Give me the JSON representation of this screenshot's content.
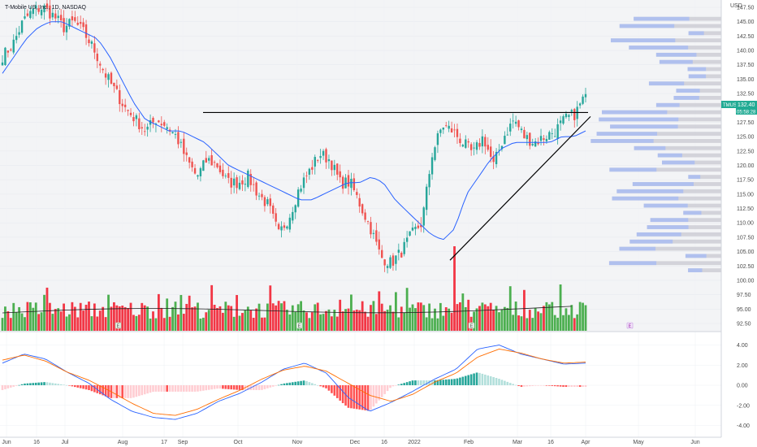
{
  "header": {
    "title": "T-Mobile US, Inc., 1D, NASDAQ",
    "currency": "USD"
  },
  "price_tag": {
    "symbol": "TMUS",
    "price": "132.40",
    "countdown": "05:58:28"
  },
  "event_markers": [
    "E",
    "E",
    "E"
  ],
  "dividend_marker": "E",
  "colors": {
    "up": "#26a69a",
    "down": "#ef5350",
    "vol_up": "#4caf50",
    "vol_down": "#f23645",
    "ma": "#2962ff",
    "macd": "#2962ff",
    "signal": "#ff6d00",
    "vp_up": "#a7bbf2",
    "vp_down": "#c8c8d0"
  },
  "chart_data": [
    {
      "type": "candlestick",
      "title": "T-Mobile US, Inc., 1D, NASDAQ",
      "ylim": [
        92.5,
        147.5
      ],
      "y_ticks": [
        "147.50",
        "145.00",
        "142.50",
        "140.00",
        "137.50",
        "135.00",
        "132.50",
        "130.00",
        "127.50",
        "125.00",
        "122.50",
        "120.00",
        "117.50",
        "115.00",
        "112.50",
        "110.00",
        "107.50",
        "105.00",
        "102.50",
        "100.00",
        "97.50",
        "95.00",
        "92.50"
      ],
      "x_ticks": [
        "Jun",
        "16",
        "Jul",
        "Aug",
        "17",
        "Sep",
        "Oct",
        "Nov",
        "Dec",
        "16",
        "2022",
        "Feb",
        "Mar",
        "16",
        "Apr",
        "May",
        "Jun"
      ],
      "series": [
        {
          "name": "close_path_waypoints",
          "values": [
            139,
            141,
            145,
            147,
            147.5,
            146,
            144,
            145,
            143,
            140,
            136,
            133,
            130,
            128,
            126,
            128,
            127,
            125,
            121,
            118,
            121,
            120,
            117,
            117,
            118,
            115,
            113,
            108,
            111,
            116,
            119,
            122,
            121,
            117,
            117,
            113,
            109,
            104,
            103,
            105,
            108,
            110,
            122,
            127,
            126,
            124,
            122,
            125,
            120,
            125,
            128,
            125,
            124,
            125,
            126,
            128,
            129,
            132.4
          ]
        },
        {
          "name": "moving_average_waypoints",
          "values": [
            136,
            139,
            142,
            144,
            145,
            145,
            144,
            143,
            142,
            139,
            135,
            131,
            128,
            127,
            126,
            126,
            125,
            124,
            122,
            120,
            119,
            118,
            117,
            116,
            115,
            114,
            114,
            115,
            116,
            117,
            117,
            118,
            117,
            114,
            112,
            110,
            108,
            107,
            109,
            115,
            118,
            121,
            123,
            124,
            124,
            124,
            124,
            125,
            125,
            126
          ]
        },
        {
          "name": "support_line",
          "values": [
            103.5,
            128.5
          ]
        },
        {
          "name": "resistance_line",
          "values": [
            129.2,
            129.2
          ]
        }
      ]
    },
    {
      "type": "bar",
      "title": "Volume"
    },
    {
      "type": "line",
      "title": "MACD",
      "ylim": [
        -4.0,
        4.0
      ],
      "y_ticks": [
        "4.00",
        "2.00",
        "0.00",
        "-2.00",
        "-4.00"
      ],
      "series": [
        {
          "name": "macd_waypoints",
          "values": [
            2.2,
            3.1,
            2.6,
            1.3,
            0.2,
            -1.4,
            -2.6,
            -3.2,
            -3.4,
            -2.8,
            -1.6,
            -0.8,
            0.3,
            1.6,
            2.2,
            1.2,
            -1.2,
            -2.6,
            -1.7,
            -0.6,
            0.6,
            1.6,
            3.6,
            4.0,
            3.1,
            2.6,
            2.1,
            2.2
          ]
        },
        {
          "name": "signal_waypoints",
          "values": [
            2.5,
            3.0,
            2.4,
            1.3,
            0.5,
            -0.6,
            -1.8,
            -2.8,
            -3.0,
            -2.4,
            -1.4,
            -0.5,
            0.6,
            1.5,
            1.9,
            1.4,
            0.2,
            -1.0,
            -1.6,
            -0.9,
            0.3,
            1.2,
            2.8,
            3.6,
            3.2,
            2.6,
            2.2,
            2.3
          ]
        }
      ]
    }
  ]
}
